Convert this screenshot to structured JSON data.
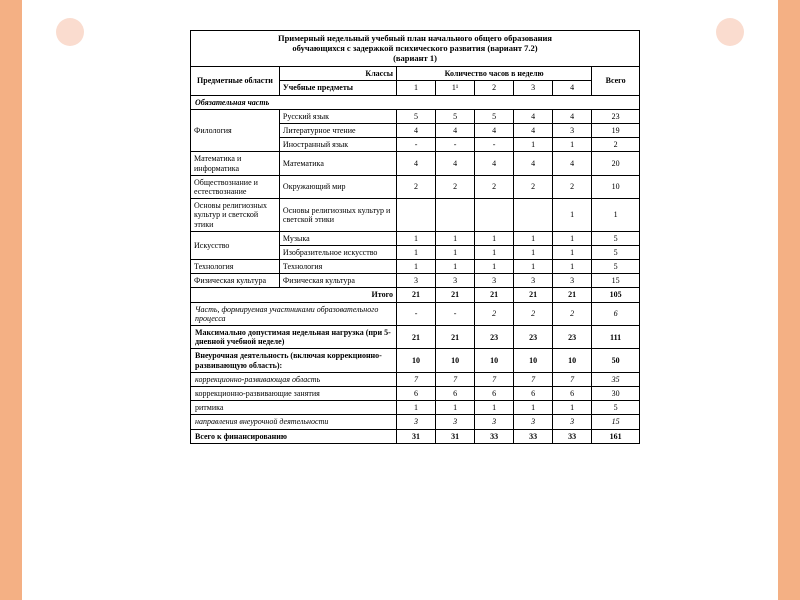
{
  "title_lines": [
    "Примерный недельный учебный план начального общего образования",
    "обучающихся с задержкой психического развития (вариант 7.2)",
    "(вариант 1)"
  ],
  "headers": {
    "areas": "Предметные области",
    "classes": "Классы",
    "subjects": "Учебные предметы",
    "hours": "Количество часов в неделю",
    "total": "Всего",
    "grade_cols": [
      "1",
      "1¹",
      "2",
      "3",
      "4"
    ]
  },
  "section_mandatory": "Обязательная часть",
  "areas": [
    {
      "name": "Филология",
      "rows": [
        {
          "subject": "Русский язык",
          "h": [
            "5",
            "5",
            "5",
            "4",
            "4"
          ],
          "total": "23"
        },
        {
          "subject": "Литературное чтение",
          "h": [
            "4",
            "4",
            "4",
            "4",
            "3"
          ],
          "total": "19"
        },
        {
          "subject": "Иностранный язык",
          "h": [
            "-",
            "-",
            "-",
            "1",
            "1"
          ],
          "total": "2"
        }
      ]
    },
    {
      "name": "Математика и информатика",
      "rows": [
        {
          "subject": "Математика",
          "h": [
            "4",
            "4",
            "4",
            "4",
            "4"
          ],
          "total": "20"
        }
      ]
    },
    {
      "name": "Обществознание и естествознание",
      "rows": [
        {
          "subject": "Окружающий мир",
          "h": [
            "2",
            "2",
            "2",
            "2",
            "2"
          ],
          "total": "10"
        }
      ]
    },
    {
      "name": "Основы религиозных культур и светской этики",
      "rows": [
        {
          "subject": "Основы религиозных культур и светской этики",
          "h": [
            "",
            "",
            "",
            "",
            "1"
          ],
          "total": "1"
        }
      ]
    },
    {
      "name": "Искусство",
      "rows": [
        {
          "subject": "Музыка",
          "h": [
            "1",
            "1",
            "1",
            "1",
            "1"
          ],
          "total": "5"
        },
        {
          "subject": "Изобразительное искусство",
          "h": [
            "1",
            "1",
            "1",
            "1",
            "1"
          ],
          "total": "5"
        }
      ]
    },
    {
      "name": "Технология",
      "rows": [
        {
          "subject": "Технология",
          "h": [
            "1",
            "1",
            "1",
            "1",
            "1"
          ],
          "total": "5"
        }
      ]
    },
    {
      "name": "Физическая культура",
      "rows": [
        {
          "subject": "Физическая культура",
          "h": [
            "3",
            "3",
            "3",
            "3",
            "3"
          ],
          "total": "15"
        }
      ]
    }
  ],
  "itogo": {
    "label": "Итого",
    "h": [
      "21",
      "21",
      "21",
      "21",
      "21"
    ],
    "total": "105"
  },
  "footer_rows": [
    {
      "label": "Часть, формируемая участниками образовательного процесса",
      "h": [
        "-",
        "-",
        "2",
        "2",
        "2"
      ],
      "total": "6",
      "bold": false,
      "ital": true
    },
    {
      "label": "Максимально допустимая недельная нагрузка (при 5-дневной учебной неделе)",
      "h": [
        "21",
        "21",
        "23",
        "23",
        "23"
      ],
      "total": "111",
      "bold": true,
      "ital": false
    },
    {
      "label": "Внеурочная деятельность (включая коррекционно-развивающую область):",
      "h": [
        "10",
        "10",
        "10",
        "10",
        "10"
      ],
      "total": "50",
      "bold": true,
      "ital": false
    },
    {
      "label": "коррекционно-развивающая область",
      "h": [
        "7",
        "7",
        "7",
        "7",
        "7"
      ],
      "total": "35",
      "bold": false,
      "ital": true
    },
    {
      "label": "коррекционно-развивающие занятия",
      "h": [
        "6",
        "6",
        "6",
        "6",
        "6"
      ],
      "total": "30",
      "bold": false,
      "ital": false
    },
    {
      "label": "ритмика",
      "h": [
        "1",
        "1",
        "1",
        "1",
        "1"
      ],
      "total": "5",
      "bold": false,
      "ital": false
    },
    {
      "label": "направления внеурочной деятельности",
      "h": [
        "3",
        "3",
        "3",
        "3",
        "3"
      ],
      "total": "15",
      "bold": false,
      "ital": true
    },
    {
      "label": "Всего к финансированию",
      "h": [
        "31",
        "31",
        "33",
        "33",
        "33"
      ],
      "total": "161",
      "bold": true,
      "ital": false
    }
  ],
  "colors": {
    "stripe": "#f4b084",
    "corner": "#fadccf",
    "border": "#000000",
    "text": "#000000",
    "bg": "#ffffff"
  },
  "font_sizes": {
    "body": 8,
    "title": 8.5
  }
}
